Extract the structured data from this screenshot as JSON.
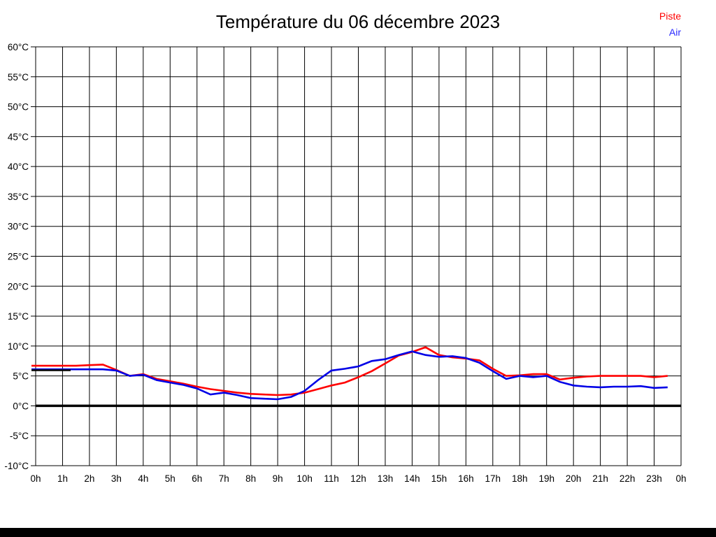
{
  "title": "Température du 06 décembre 2023",
  "legend": [
    {
      "label": "Piste",
      "color": "#ff0000"
    },
    {
      "label": "Air",
      "color": "#2929ff"
    }
  ],
  "colors": {
    "grid": "#000000",
    "zero_line": "#000000",
    "background": "#ffffff",
    "piste": "#ff0000",
    "air": "#0000e6",
    "unlabeled_segment": "#000000"
  },
  "chart_data": {
    "type": "line",
    "title": "Température du 06 décembre 2023",
    "xlabel": "",
    "ylabel": "",
    "xlim": [
      0,
      24
    ],
    "ylim": [
      -10,
      60
    ],
    "grid": true,
    "legend_position": "top-right",
    "zero_line_value": 0,
    "x_tick_values": [
      0,
      1,
      2,
      3,
      4,
      5,
      6,
      7,
      8,
      9,
      10,
      11,
      12,
      13,
      14,
      15,
      16,
      17,
      18,
      19,
      20,
      21,
      22,
      23,
      24
    ],
    "x_tick_labels": [
      "0h",
      "1h",
      "2h",
      "3h",
      "4h",
      "5h",
      "6h",
      "7h",
      "8h",
      "9h",
      "10h",
      "11h",
      "12h",
      "13h",
      "14h",
      "15h",
      "16h",
      "17h",
      "18h",
      "19h",
      "20h",
      "21h",
      "22h",
      "23h",
      "0h"
    ],
    "y_tick_values": [
      60,
      55,
      50,
      45,
      40,
      35,
      30,
      25,
      20,
      15,
      10,
      5,
      0,
      -5,
      -10
    ],
    "y_tick_labels": [
      "60°C",
      "55°C",
      "50°C",
      "45°C",
      "40°C",
      "35°C",
      "30°C",
      "25°C",
      "20°C",
      "15°C",
      "10°C",
      "5°C",
      "0°C",
      "-5°C",
      "-10°C"
    ],
    "x": [
      0,
      0.5,
      1,
      1.5,
      2,
      2.5,
      3,
      3.5,
      4,
      4.5,
      5,
      5.5,
      6,
      6.5,
      7,
      7.5,
      8,
      8.5,
      9,
      9.5,
      10,
      10.5,
      11,
      11.5,
      12,
      12.5,
      13,
      13.5,
      14,
      14.5,
      15,
      15.5,
      16,
      16.5,
      17,
      17.5,
      18,
      18.5,
      19,
      19.5,
      20,
      20.5,
      21,
      21.5,
      22,
      22.5,
      23,
      23.5
    ],
    "series": [
      {
        "name": "Piste",
        "color": "#ff0000",
        "values": [
          6.7,
          6.7,
          6.7,
          6.7,
          6.8,
          6.9,
          6.0,
          5.0,
          5.3,
          4.5,
          4.1,
          3.7,
          3.2,
          2.8,
          2.5,
          2.2,
          2.0,
          1.9,
          1.8,
          1.9,
          2.2,
          2.8,
          3.4,
          3.9,
          4.8,
          5.8,
          7.1,
          8.4,
          9.0,
          9.8,
          8.5,
          8.1,
          7.9,
          7.6,
          6.2,
          5.0,
          5.1,
          5.3,
          5.3,
          4.4,
          4.7,
          4.9,
          5.0,
          5.0,
          5.0,
          5.0,
          4.8,
          5.0
        ]
      },
      {
        "name": "Air",
        "color": "#0000e6",
        "values": [
          6.1,
          6.1,
          6.1,
          6.1,
          6.1,
          6.1,
          5.9,
          5.0,
          5.2,
          4.3,
          3.9,
          3.5,
          2.9,
          1.9,
          2.2,
          1.8,
          1.3,
          1.2,
          1.1,
          1.5,
          2.5,
          4.3,
          5.9,
          6.2,
          6.6,
          7.5,
          7.8,
          8.5,
          9.1,
          8.5,
          8.2,
          8.3,
          8.0,
          7.2,
          5.8,
          4.5,
          5.0,
          4.8,
          5.0,
          4.0,
          3.4,
          3.2,
          3.1,
          3.2,
          3.2,
          3.3,
          3.0,
          3.1
        ]
      },
      {
        "name": "unlabeled-black-segment",
        "color": "#000000",
        "x": [
          0,
          1.3
        ],
        "values": [
          5.95,
          5.95
        ]
      }
    ]
  }
}
